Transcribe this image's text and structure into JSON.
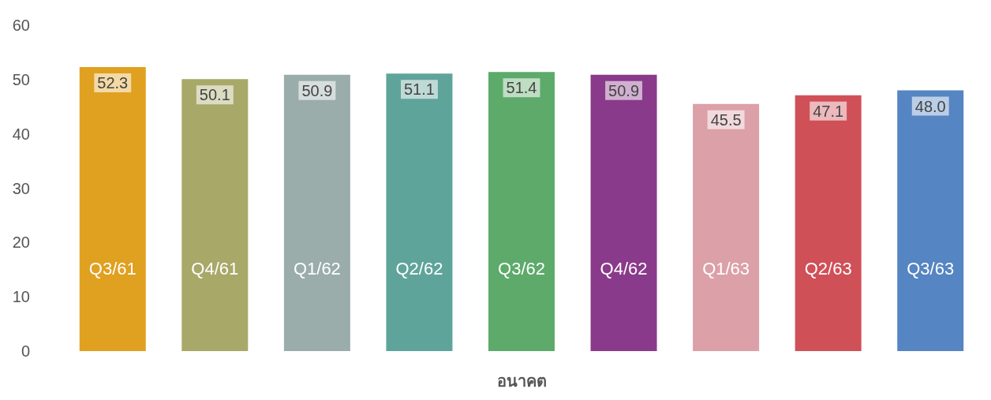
{
  "chart_data": {
    "type": "bar",
    "xlabel": "อนาคต",
    "categories": [
      "Q3/61",
      "Q4/61",
      "Q1/62",
      "Q2/62",
      "Q3/62",
      "Q4/62",
      "Q1/63",
      "Q2/63",
      "Q3/63"
    ],
    "values": [
      52.3,
      50.1,
      50.9,
      51.1,
      51.4,
      50.9,
      45.5,
      47.1,
      48.0
    ],
    "value_labels": [
      "52.3",
      "50.1",
      "50.9",
      "51.1",
      "51.4",
      "50.9",
      "45.5",
      "47.1",
      "48.0"
    ],
    "colors": [
      "#e0a020",
      "#a8a868",
      "#9aadab",
      "#5fa49a",
      "#5daa6a",
      "#8a3a8a",
      "#dca0a8",
      "#d05058",
      "#5585c2"
    ],
    "ylim": [
      0,
      60
    ],
    "yticks": [
      0,
      10,
      20,
      30,
      40,
      50,
      60
    ],
    "grid": false
  }
}
